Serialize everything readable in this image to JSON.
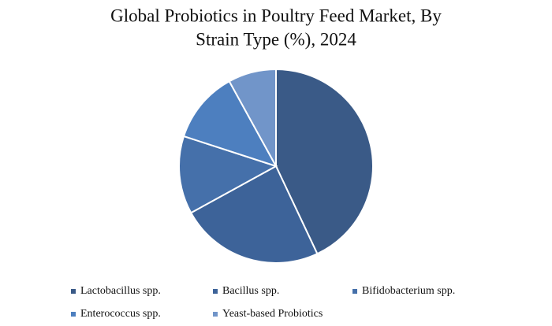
{
  "chart_data": {
    "type": "pie",
    "title": [
      "Global Probiotics in Poultry Feed Market, By",
      "Strain Type (%), 2024"
    ],
    "categories": [
      "Lactobacillus spp.",
      "Bacillus spp.",
      "Bifidobacterium spp.",
      "Enterococcus spp.",
      "Yeast-based Probiotics"
    ],
    "values": [
      43,
      24,
      13,
      12,
      8
    ],
    "colors": [
      "#3a5a87",
      "#3d6399",
      "#4570aa",
      "#4d7fbf",
      "#7195c9"
    ]
  }
}
